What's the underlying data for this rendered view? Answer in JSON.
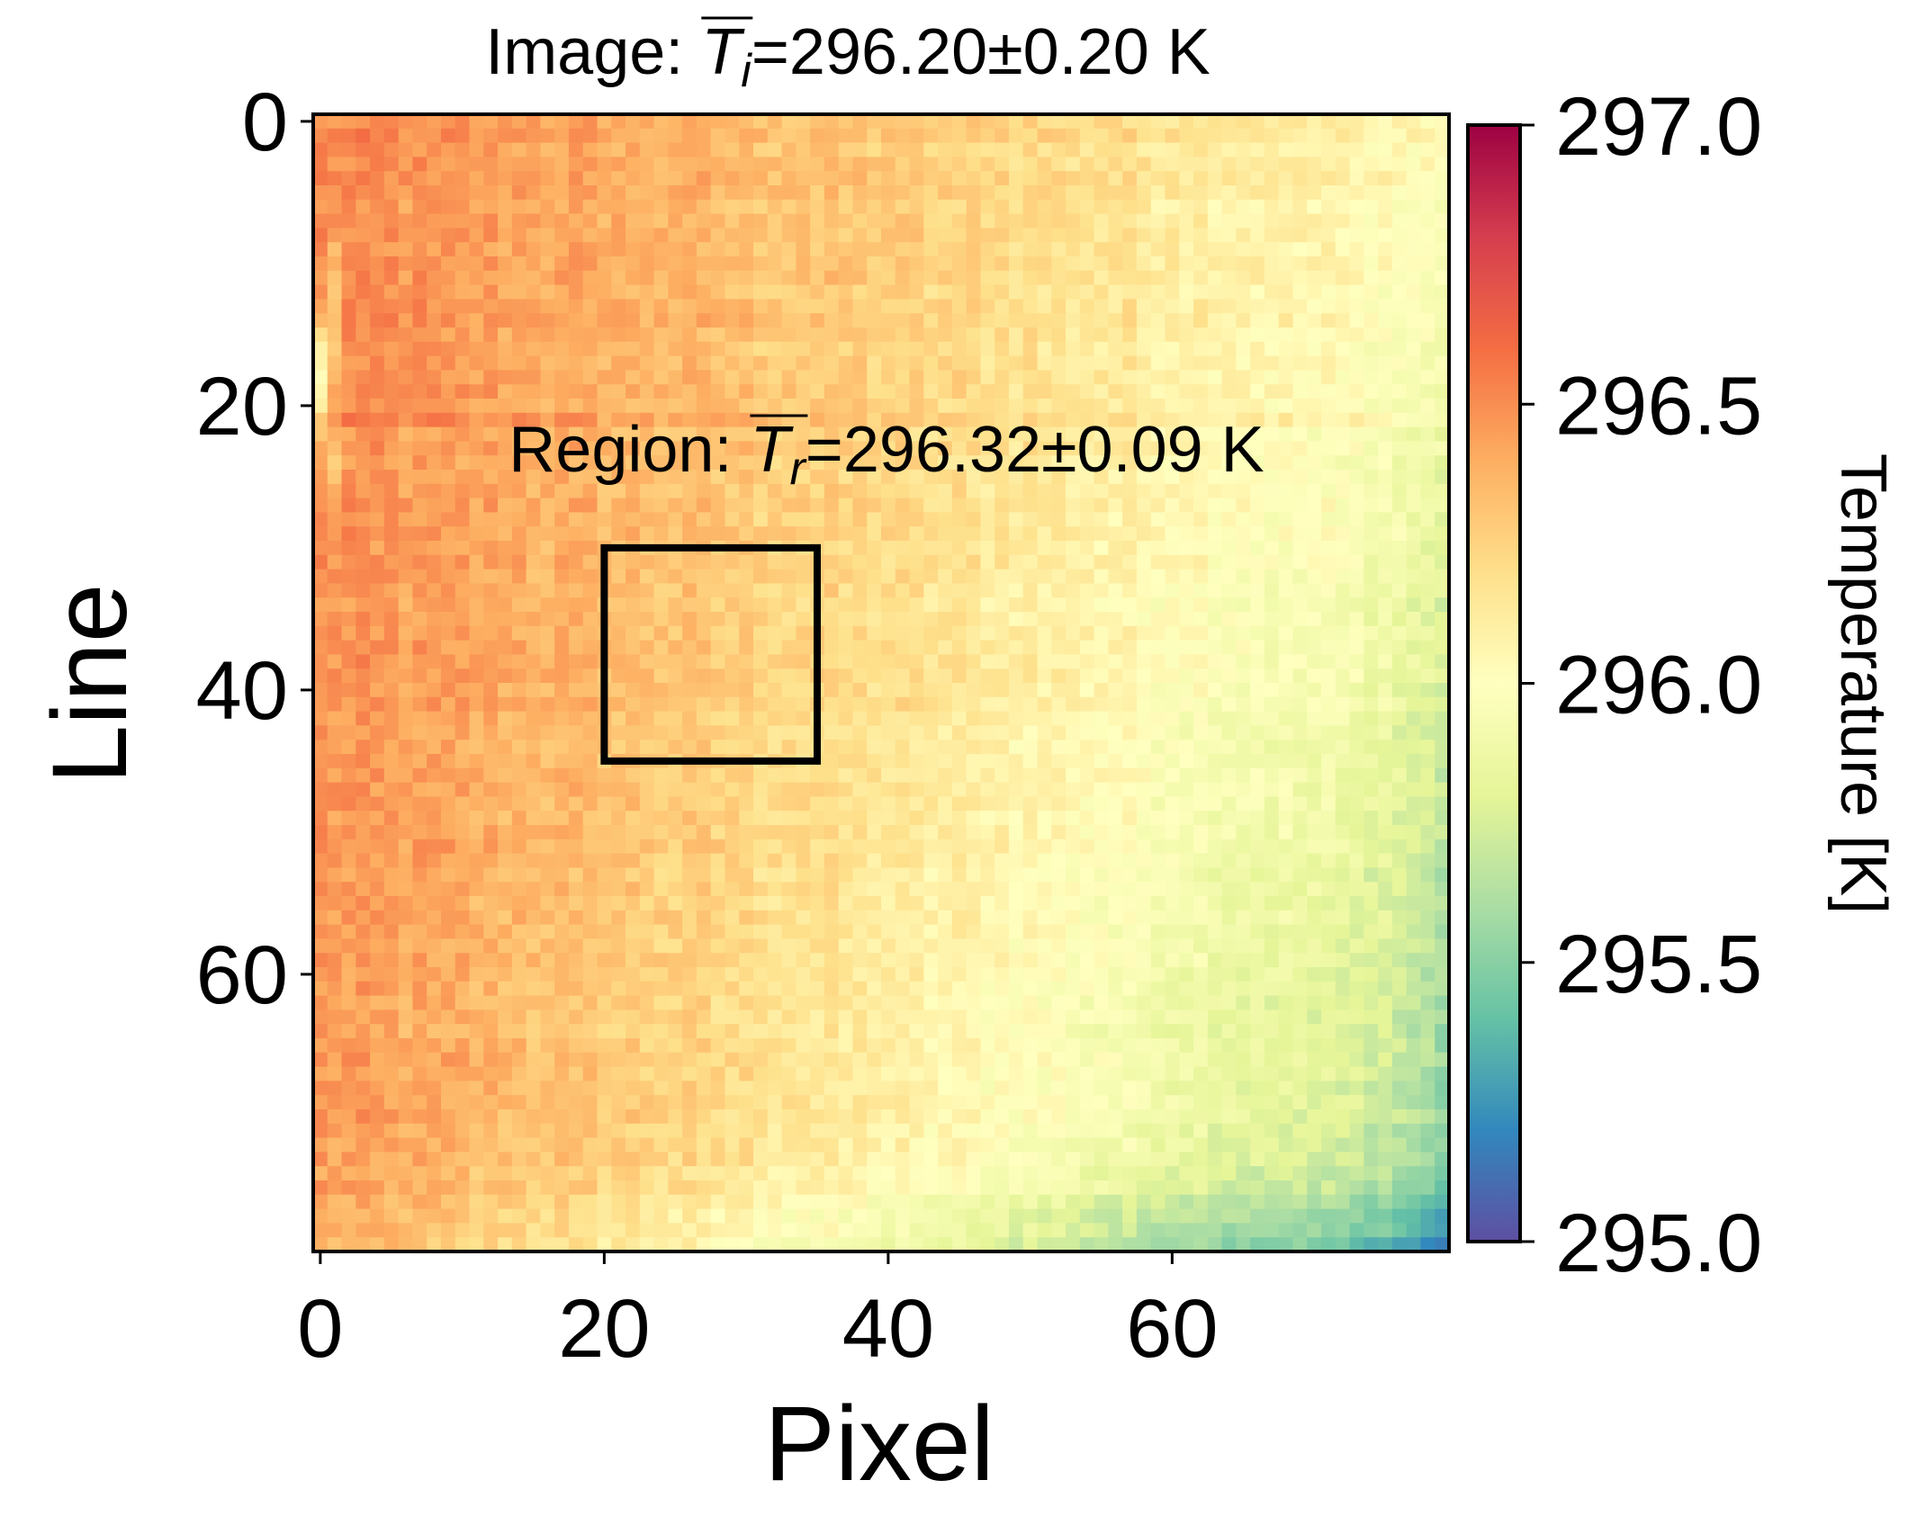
{
  "chart_data": {
    "type": "heatmap",
    "title": {
      "prefix": "Image: ",
      "symbol": "T",
      "subscript": "i",
      "suffix": "=296.20±0.20 K"
    },
    "xlabel": "Pixel",
    "ylabel": "Line",
    "colorbar_label": "Temperature [K]",
    "colormap": "Spectral_r",
    "colormap_stops": [
      "#5e4fa2",
      "#3288bd",
      "#66c2a5",
      "#abdda4",
      "#e6f598",
      "#ffffbf",
      "#fee08b",
      "#fdae61",
      "#f46d43",
      "#d53e4f",
      "#9e0142"
    ],
    "grid_size": {
      "columns": 80,
      "rows": 80
    },
    "xlim": [
      -0.5,
      79.5
    ],
    "ylim": [
      79.5,
      -0.5
    ],
    "xticks": [
      0,
      20,
      40,
      60
    ],
    "xtick_labels": [
      "0",
      "20",
      "40",
      "60"
    ],
    "yticks": [
      0,
      20,
      40,
      60
    ],
    "ytick_labels": [
      "0",
      "20",
      "40",
      "60"
    ],
    "color_range": [
      295.0,
      297.0
    ],
    "colorbar_ticks": [
      297.0,
      296.5,
      296.0,
      295.5,
      295.0
    ],
    "colorbar_tick_labels": [
      "297.0",
      "296.5",
      "296.0",
      "295.5",
      "295.0"
    ],
    "field_model": {
      "description": "warm upper-left, cooling toward lower-right, cooler bottom edge and right column",
      "hot_corner_value": 296.5,
      "cool_corner_value": 295.75
    },
    "region": {
      "x_range": [
        20,
        35
      ],
      "y_range": [
        30,
        45
      ],
      "label": {
        "prefix": "Region: ",
        "symbol": "T",
        "subscript": "r",
        "suffix": "=296.32±0.09 K"
      }
    },
    "image_mean": 296.2,
    "image_std": 0.2,
    "region_mean": 296.32,
    "region_std": 0.09
  }
}
